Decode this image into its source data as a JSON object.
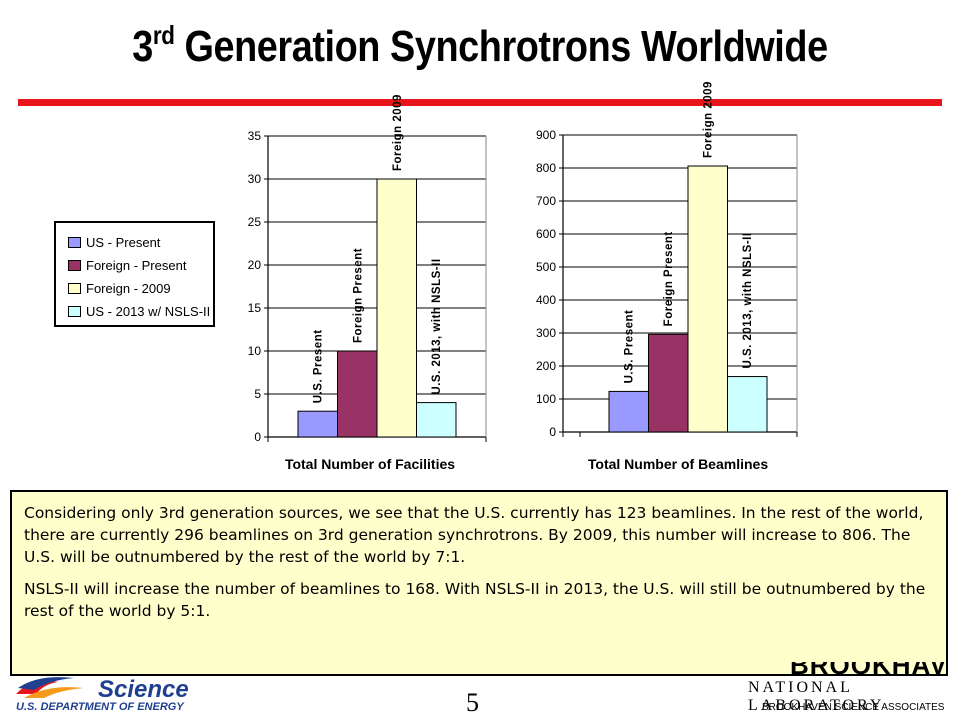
{
  "slide": {
    "title_main": "3",
    "title_sup": "rd",
    "title_rest": " Generation Synchrotrons Worldwide",
    "page_number": "5",
    "caption_p1": "Considering only 3rd generation sources, we see that the U.S. currently has 123 beamlines.  In the rest of the world, there are currently 296 beamlines on 3rd generation synchrotrons.  By 2009, this number will increase to 806.  The U.S. will be outnumbered by the rest of the world by 7:1.",
    "caption_p2": "NSLS-II will increase the number of beamlines to 168.  With NSLS-II in 2013, the U.S. will still be outnumbered by the rest of the world by 5:1.",
    "footer_science": "Science",
    "footer_doe": "U.S. DEPARTMENT OF ENERGY",
    "footer_lab": "NATIONAL LABORATORY",
    "footer_brook": "BROOKHAVEN",
    "footer_assoc": "BROOKHAVEN SCIENCE ASSOCIATES"
  },
  "legend": [
    {
      "label": "US - Present",
      "color": "#9999ff"
    },
    {
      "label": "Foreign - Present",
      "color": "#993366"
    },
    {
      "label": "Foreign - 2009",
      "color": "#ffffcc"
    },
    {
      "label": "US - 2013 w/ NSLS-II",
      "color": "#ccffff"
    }
  ],
  "chart_data": [
    {
      "type": "bar",
      "xlabel": "Total Number of Facilities",
      "ylim": [
        0,
        35
      ],
      "yticks": [
        0,
        5,
        10,
        15,
        20,
        25,
        30,
        35
      ],
      "grid": true,
      "categories": [
        "U.S. Present",
        "Foreign Present",
        "Foreign 2009",
        "U.S. 2013, with NSLS-II"
      ],
      "values": [
        3,
        10,
        30,
        4
      ],
      "colors": [
        "#9999ff",
        "#993366",
        "#ffffcc",
        "#ccffff"
      ]
    },
    {
      "type": "bar",
      "xlabel": "Total Number of Beamlines",
      "ylim": [
        0,
        900
      ],
      "yticks": [
        0,
        100,
        200,
        300,
        400,
        500,
        600,
        700,
        800,
        900
      ],
      "grid": true,
      "categories": [
        "U.S. Present",
        "Foreign Present",
        "Foreign 2009",
        "U.S. 2013, with NSLS-II"
      ],
      "values": [
        123,
        296,
        806,
        168
      ],
      "colors": [
        "#9999ff",
        "#993366",
        "#ffffcc",
        "#ccffff"
      ]
    }
  ]
}
